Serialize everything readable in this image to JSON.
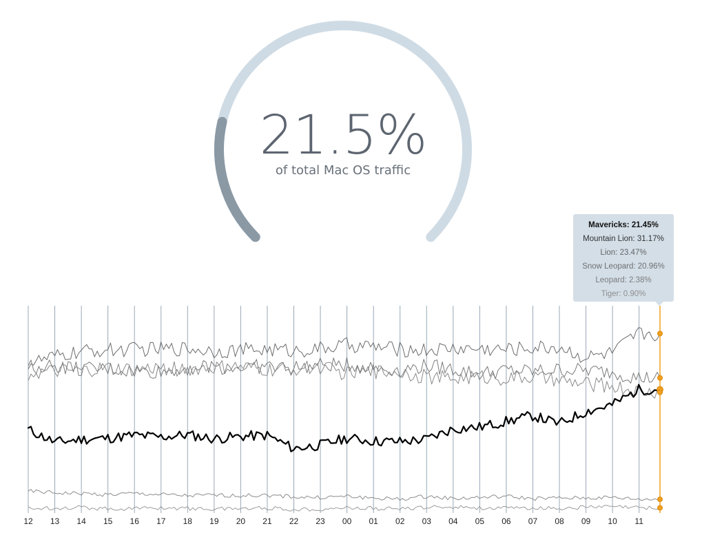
{
  "gauge": {
    "value_text": "21.5%",
    "caption": "of total Mac OS traffic",
    "value_pct": 21.45,
    "track_color": "#cfdbe4",
    "fill_color": "#8b99a5"
  },
  "tooltip": {
    "rows": [
      {
        "label": "Mavericks",
        "value": "21.45%",
        "color": "#111111",
        "bold": true
      },
      {
        "label": "Mountain Lion",
        "value": "31.17%",
        "color": "#333333",
        "bold": false
      },
      {
        "label": "Lion",
        "value": "23.47%",
        "color": "#666666",
        "bold": false
      },
      {
        "label": "Snow Leopard",
        "value": "20.96%",
        "color": "#707070",
        "bold": false
      },
      {
        "label": "Leopard",
        "value": "2.38%",
        "color": "#7d7d7d",
        "bold": false
      },
      {
        "label": "Tiger",
        "value": "0.90%",
        "color": "#8f8f8f",
        "bold": false
      }
    ]
  },
  "chart_data": {
    "type": "line",
    "title": "",
    "xlabel": "",
    "ylabel": "",
    "categories": [
      "12",
      "13",
      "14",
      "15",
      "16",
      "17",
      "18",
      "19",
      "20",
      "21",
      "22",
      "23",
      "00",
      "01",
      "02",
      "03",
      "04",
      "05",
      "06",
      "07",
      "08",
      "09",
      "10",
      "11"
    ],
    "ylim": [
      0,
      36
    ],
    "grid": "vertical",
    "highlight_color": "#f0a020",
    "gridline_color": "#97a8b6",
    "series": [
      {
        "name": "Mavericks",
        "color": "#000000",
        "width": 2.2,
        "values": [
          14.5,
          12.3,
          12.8,
          13.0,
          13.5,
          13.2,
          13.6,
          12.9,
          13.3,
          13.5,
          11.2,
          11.8,
          13.0,
          12.5,
          12.4,
          12.8,
          14.6,
          14.9,
          15.9,
          16.9,
          15.5,
          17.6,
          18.8,
          21.45
        ]
      },
      {
        "name": "Mountain Lion",
        "color": "#6b6b6b",
        "width": 1,
        "values": [
          26.0,
          27.1,
          28.0,
          28.3,
          28.4,
          28.5,
          28.6,
          28.2,
          28.3,
          28.4,
          28.2,
          28.5,
          29.2,
          28.9,
          28.4,
          28.3,
          28.6,
          28.5,
          28.4,
          28.7,
          28.8,
          27.0,
          27.8,
          31.17
        ]
      },
      {
        "name": "Lion",
        "color": "#7a7a7a",
        "width": 1,
        "values": [
          25.4,
          25.6,
          24.9,
          25.0,
          24.6,
          24.5,
          25.2,
          25.4,
          25.3,
          25.5,
          25.2,
          25.6,
          25.8,
          25.2,
          24.8,
          25.6,
          25.0,
          24.2,
          24.8,
          24.6,
          24.9,
          24.8,
          24.5,
          23.47
        ]
      },
      {
        "name": "Snow Leopard",
        "color": "#8a8a8a",
        "width": 1,
        "values": [
          24.2,
          24.5,
          24.6,
          25.1,
          24.8,
          25.2,
          24.9,
          25.2,
          25.3,
          24.8,
          25.0,
          25.4,
          24.2,
          24.6,
          24.6,
          23.6,
          23.4,
          23.7,
          23.4,
          23.6,
          22.9,
          22.4,
          22.1,
          20.96
        ]
      },
      {
        "name": "Leopard",
        "color": "#8c8c8c",
        "width": 1,
        "values": [
          3.8,
          3.5,
          3.4,
          3.2,
          3.4,
          3.2,
          3.0,
          3.1,
          3.0,
          3.1,
          2.8,
          2.7,
          2.9,
          2.6,
          2.4,
          2.9,
          2.5,
          2.7,
          2.9,
          2.5,
          2.6,
          2.6,
          2.7,
          2.38
        ]
      },
      {
        "name": "Tiger",
        "color": "#9a9a9a",
        "width": 1,
        "values": [
          0.8,
          0.9,
          1.0,
          0.7,
          0.8,
          0.9,
          0.8,
          0.7,
          0.8,
          0.9,
          0.6,
          0.7,
          0.9,
          0.8,
          0.7,
          1.0,
          1.1,
          0.9,
          0.8,
          0.9,
          0.8,
          1.0,
          1.1,
          0.9
        ]
      }
    ]
  }
}
